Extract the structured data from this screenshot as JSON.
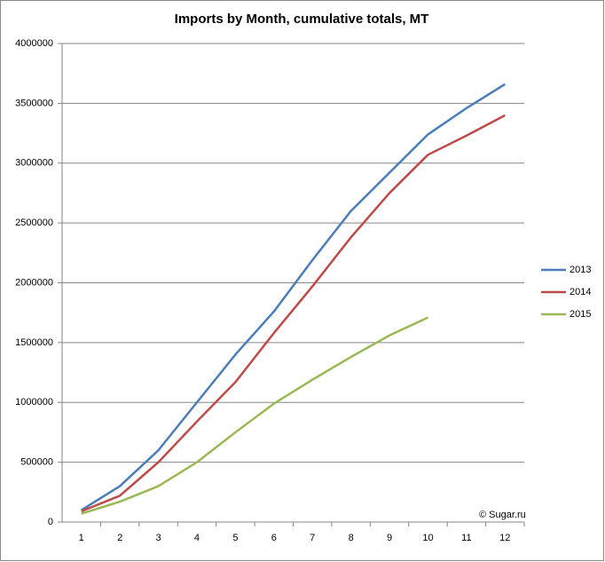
{
  "chart_data": {
    "type": "line",
    "title": "Imports by Month, cumulative totals, MT",
    "categories": [
      "1",
      "2",
      "3",
      "4",
      "5",
      "6",
      "7",
      "8",
      "9",
      "10",
      "11",
      "12"
    ],
    "series": [
      {
        "name": "2013",
        "color": "#4a7ebb",
        "values": [
          100000,
          300000,
          600000,
          1000000,
          1400000,
          1760000,
          2190000,
          2600000,
          2920000,
          3240000,
          3460000,
          3660000
        ]
      },
      {
        "name": "2014",
        "color": "#be4b48",
        "values": [
          90000,
          220000,
          500000,
          840000,
          1170000,
          1580000,
          1970000,
          2380000,
          2750000,
          3070000,
          3230000,
          3400000
        ]
      },
      {
        "name": "2015",
        "color": "#98b954",
        "values": [
          70000,
          170000,
          300000,
          500000,
          750000,
          990000,
          1190000,
          1380000,
          1560000,
          1710000,
          null,
          null
        ]
      }
    ],
    "ylim": [
      0,
      4000000
    ],
    "yticks": [
      0,
      500000,
      1000000,
      1500000,
      2000000,
      2500000,
      3000000,
      3500000,
      4000000
    ],
    "grid": true,
    "legend": "right",
    "annotation": "© Sugar.ru"
  }
}
